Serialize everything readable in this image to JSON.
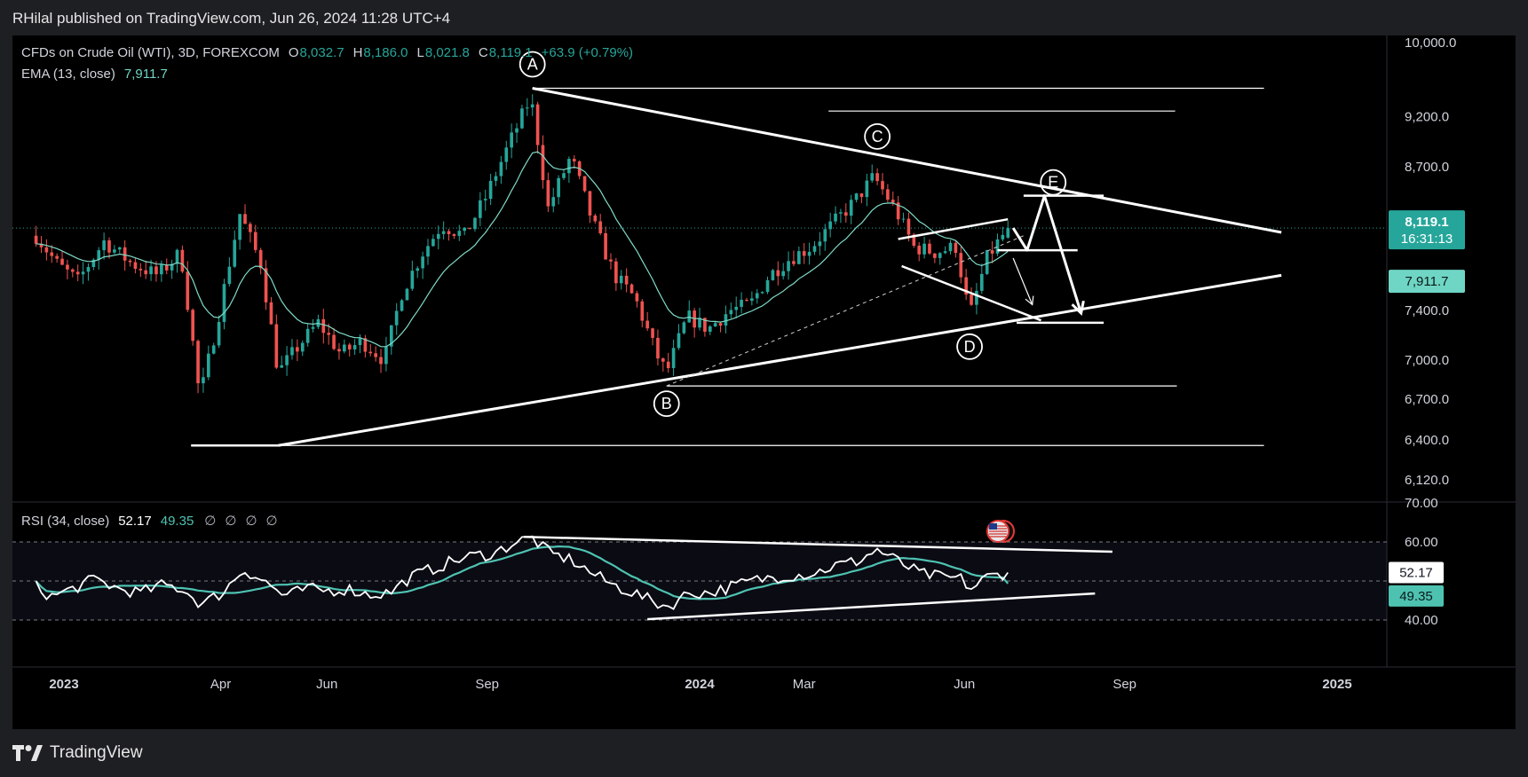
{
  "header": {
    "published_by": "RHilal published on TradingView.com, Jun 26, 2024 11:28 UTC+4"
  },
  "footer": {
    "brand": "TradingView"
  },
  "colors": {
    "up": "#26a69a",
    "down": "#ef5350",
    "ema": "#7fdbc8",
    "rsi": "#ffffff",
    "rsi_ma": "#4ec2b1",
    "annotation": "#ffffff"
  },
  "legend": {
    "symbol": "CFDs on Crude Oil (WTI), 3D, FOREXCOM",
    "o_label": "O",
    "o_value": "8,032.7",
    "h_label": "H",
    "h_value": "8,186.0",
    "l_label": "L",
    "l_value": "8,021.8",
    "c_label": "C",
    "c_value": "8,119.1",
    "change": "+63.9 (+0.79%)",
    "ema_label": "EMA (13, close)",
    "ema_value": "7,911.7"
  },
  "rsi_legend": {
    "label": "RSI (34, close)",
    "rsi_value": "52.17",
    "ma_value": "49.35",
    "placeholders": [
      "∅",
      "∅",
      "∅",
      "∅"
    ]
  },
  "price_badges": {
    "last": "8,119.1",
    "countdown": "16:31:13",
    "ema": "7,911.7"
  },
  "rsi_badges": {
    "rsi": "52.17",
    "ma": "49.35"
  },
  "chart_data": [
    {
      "type": "candlestick",
      "title": "CFDs on Crude Oil (WTI), 3D, FOREXCOM",
      "y_ticks": [
        "10,000.0",
        "9,200.0",
        "8,700.0",
        "8,200.0",
        "7,400.0",
        "7,000.0",
        "6,700.0",
        "6,400.0",
        "6,120.0"
      ],
      "y_tick_values": [
        10000,
        9200,
        8700,
        8200,
        7400,
        7000,
        6700,
        6400,
        6120
      ],
      "x_ticks": [
        "2023",
        "Apr",
        "Jun",
        "Sep",
        "2024",
        "Mar",
        "Jun",
        "Sep",
        "2025"
      ],
      "ylim": [
        5950,
        10250
      ],
      "scale": "log",
      "grid": false,
      "price_path": [
        [
          "2022-12-16",
          8050
        ],
        [
          "2022-12-28",
          7800
        ],
        [
          "2023-01-09",
          7650
        ],
        [
          "2023-01-24",
          8000
        ],
        [
          "2023-02-09",
          7800
        ],
        [
          "2023-02-24",
          7700
        ],
        [
          "2023-03-09",
          7900
        ],
        [
          "2023-03-20",
          6700
        ],
        [
          "2023-03-30",
          7300
        ],
        [
          "2023-04-12",
          8250
        ],
        [
          "2023-04-24",
          7800
        ],
        [
          "2023-05-04",
          6900
        ],
        [
          "2023-05-15",
          7100
        ],
        [
          "2023-05-27",
          7300
        ],
        [
          "2023-06-09",
          7050
        ],
        [
          "2023-06-21",
          7150
        ],
        [
          "2023-07-04",
          7000
        ],
        [
          "2023-07-14",
          7550
        ],
        [
          "2023-07-26",
          7900
        ],
        [
          "2023-08-06",
          8150
        ],
        [
          "2023-08-19",
          8050
        ],
        [
          "2023-08-31",
          8400
        ],
        [
          "2023-09-13",
          8900
        ],
        [
          "2023-09-26",
          9400
        ],
        [
          "2023-10-06",
          8300
        ],
        [
          "2023-10-19",
          8800
        ],
        [
          "2023-10-31",
          8200
        ],
        [
          "2023-11-13",
          7700
        ],
        [
          "2023-11-25",
          7500
        ],
        [
          "2023-12-07",
          7050
        ],
        [
          "2023-12-13",
          6900
        ],
        [
          "2023-12-25",
          7350
        ],
        [
          "2024-01-06",
          7250
        ],
        [
          "2024-01-18",
          7400
        ],
        [
          "2024-01-30",
          7450
        ],
        [
          "2024-02-10",
          7700
        ],
        [
          "2024-02-22",
          7850
        ],
        [
          "2024-03-05",
          7950
        ],
        [
          "2024-03-17",
          8150
        ],
        [
          "2024-03-29",
          8350
        ],
        [
          "2024-04-10",
          8600
        ],
        [
          "2024-04-22",
          8300
        ],
        [
          "2024-05-03",
          7950
        ],
        [
          "2024-05-15",
          7900
        ],
        [
          "2024-05-27",
          7950
        ],
        [
          "2024-06-04",
          7350
        ],
        [
          "2024-06-14",
          7850
        ],
        [
          "2024-06-26",
          8119.1
        ]
      ],
      "ema_13": {
        "label": "EMA (13, close)",
        "last": 7911.7
      },
      "annotations": {
        "points": [
          {
            "label": "A",
            "x": "2023-09-27",
            "y": 9500
          },
          {
            "label": "B",
            "x": "2023-12-13",
            "y": 6800
          },
          {
            "label": "C",
            "x": "2024-04-12",
            "y": 8760
          },
          {
            "label": "D",
            "x": "2024-06-04",
            "y": 7250
          },
          {
            "label": "E",
            "x": "2024-07-22",
            "y": 8420
          }
        ],
        "trendlines": [
          {
            "from": [
              "2023-09-27",
              9500
            ],
            "to": [
              "2024-11-30",
              8080
            ]
          },
          {
            "from": [
              "2023-05-04",
              6360
            ],
            "to": [
              "2024-11-30",
              7700
            ]
          }
        ],
        "horizontals": [
          {
            "y": 9500,
            "from": "2023-09-27",
            "to": "2024-11-20"
          },
          {
            "y": 9260,
            "from": "2024-03-15",
            "to": "2024-09-30"
          },
          {
            "y": 6800,
            "from": "2023-12-13",
            "to": "2024-10-01"
          },
          {
            "y": 6360,
            "from": "2023-05-04",
            "to": "2024-11-20"
          },
          {
            "y": 6360,
            "from": "2023-03-15",
            "to": "2023-05-04",
            "bold": true
          },
          {
            "y": 8420,
            "from": "2024-07-05",
            "to": "2024-08-20",
            "bold": true
          },
          {
            "y": 7920,
            "from": "2024-06-20",
            "to": "2024-08-05",
            "bold": true
          },
          {
            "y": 7300,
            "from": "2024-07-01",
            "to": "2024-08-20",
            "bold": true
          }
        ],
        "channel": [
          {
            "from": [
              "2024-04-24",
              8020
            ],
            "to": [
              "2024-06-26",
              8200
            ]
          },
          {
            "from": [
              "2024-04-26",
              7780
            ],
            "to": [
              "2024-07-15",
              7320
            ]
          }
        ],
        "dashed": {
          "from": [
            "2023-12-13",
            6800
          ],
          "to": [
            "2024-07-05",
            8050
          ]
        },
        "projection": [
          [
            "2024-06-29",
            8120
          ],
          [
            "2024-07-07",
            7920
          ],
          [
            "2024-07-17",
            8420
          ],
          [
            "2024-08-07",
            7380
          ]
        ],
        "projection_alt": {
          "from": [
            "2024-06-29",
            7850
          ],
          "to": [
            "2024-07-10",
            7450
          ]
        }
      }
    },
    {
      "type": "line",
      "title": "RSI (34, close)",
      "y_ticks": [
        "70.00",
        "60.00",
        "40.00"
      ],
      "y_tick_values": [
        70,
        60,
        40
      ],
      "ylim": [
        37.8,
        70
      ],
      "grid": false,
      "reference_lines": [
        60,
        50,
        40
      ],
      "series": [
        {
          "name": "RSI (34, close)",
          "last": 52.17,
          "path": [
            [
              "2022-12-16",
              48.5
            ],
            [
              "2022-12-25",
              46
            ],
            [
              "2023-01-06",
              48
            ],
            [
              "2023-01-19",
              50.5
            ],
            [
              "2023-02-01",
              48
            ],
            [
              "2023-02-14",
              47
            ],
            [
              "2023-02-27",
              49
            ],
            [
              "2023-03-10",
              48
            ],
            [
              "2023-03-21",
              44
            ],
            [
              "2023-04-02",
              47
            ],
            [
              "2023-04-14",
              53
            ],
            [
              "2023-04-26",
              50
            ],
            [
              "2023-05-08",
              46
            ],
            [
              "2023-05-20",
              48
            ],
            [
              "2023-06-01",
              47.5
            ],
            [
              "2023-06-13",
              48
            ],
            [
              "2023-06-25",
              46.5
            ],
            [
              "2023-07-07",
              47
            ],
            [
              "2023-07-19",
              51
            ],
            [
              "2023-07-31",
              53
            ],
            [
              "2023-08-12",
              55
            ],
            [
              "2023-08-24",
              56.5
            ],
            [
              "2023-09-05",
              57
            ],
            [
              "2023-09-17",
              60
            ],
            [
              "2023-09-27",
              61
            ],
            [
              "2023-10-07",
              57
            ],
            [
              "2023-10-19",
              55.5
            ],
            [
              "2023-10-31",
              52
            ],
            [
              "2023-11-12",
              49
            ],
            [
              "2023-11-24",
              47
            ],
            [
              "2023-12-06",
              44.5
            ],
            [
              "2023-12-14",
              43.5
            ],
            [
              "2023-12-26",
              47
            ],
            [
              "2024-01-07",
              47
            ],
            [
              "2024-01-19",
              48.5
            ],
            [
              "2024-01-31",
              50
            ],
            [
              "2024-02-12",
              51
            ],
            [
              "2024-02-24",
              51.5
            ],
            [
              "2024-03-07",
              52
            ],
            [
              "2024-03-19",
              54
            ],
            [
              "2024-03-31",
              55
            ],
            [
              "2024-04-12",
              58
            ],
            [
              "2024-04-24",
              55
            ],
            [
              "2024-05-06",
              52
            ],
            [
              "2024-05-18",
              51
            ],
            [
              "2024-05-30",
              50.5
            ],
            [
              "2024-06-05",
              48
            ],
            [
              "2024-06-14",
              51
            ],
            [
              "2024-06-26",
              52.17
            ]
          ]
        },
        {
          "name": "RSI-based MA",
          "last": 49.35
        }
      ],
      "annotations": [
        {
          "from": [
            "2023-09-22",
            61.3
          ],
          "to": [
            "2024-08-25",
            57.5
          ]
        },
        {
          "from": [
            "2023-12-02",
            40.2
          ],
          "to": [
            "2024-08-15",
            46.8
          ]
        }
      ]
    }
  ]
}
